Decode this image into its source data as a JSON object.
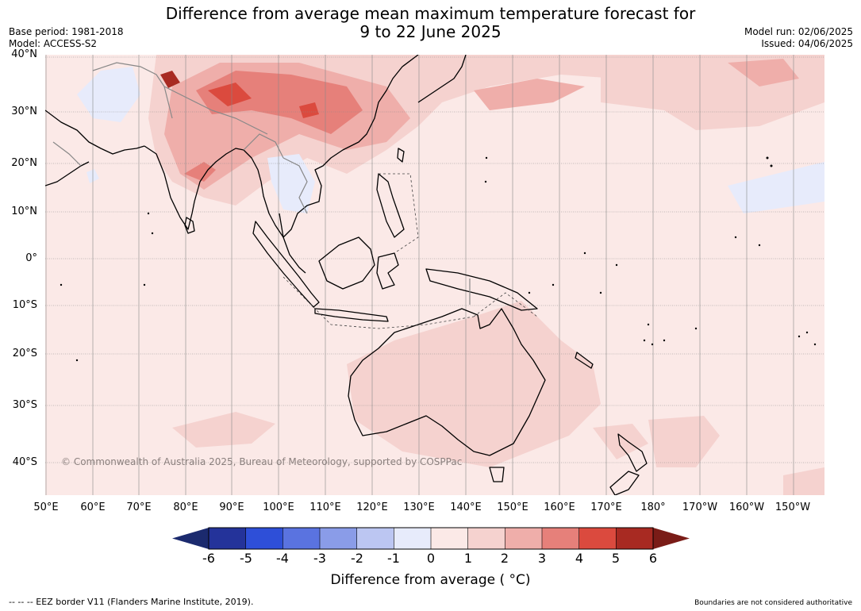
{
  "header": {
    "title_line1": "Difference from average mean maximum temperature forecast for",
    "title_line2": "9 to 22 June 2025",
    "base_period": "Base period: 1981-2018",
    "model": "Model: ACCESS-S2",
    "model_run": "Model run: 02/06/2025",
    "issued": "Issued: 04/06/2025"
  },
  "map": {
    "copyright": "© Commonwealth of Australia 2025, Bureau of Meteorology, supported by COSPPac",
    "lat_labels": [
      "40°N",
      "30°N",
      "20°N",
      "10°N",
      "0°",
      "10°S",
      "20°S",
      "30°S",
      "40°S"
    ],
    "lon_labels": [
      "50°E",
      "60°E",
      "70°E",
      "80°E",
      "90°E",
      "100°E",
      "110°E",
      "120°E",
      "130°E",
      "140°E",
      "150°E",
      "160°E",
      "170°E",
      "180°",
      "170°W",
      "160°W",
      "150°W"
    ],
    "background_color": "#fbe9e7"
  },
  "colorbar": {
    "title": "Difference from average ( °C)",
    "labels": [
      "-6",
      "-5",
      "-4",
      "-3",
      "-2",
      "-1",
      "0",
      "1",
      "2",
      "3",
      "4",
      "5",
      "6"
    ],
    "colors": [
      "#24339a",
      "#2e4fd8",
      "#5a73e0",
      "#8a9ce8",
      "#bcc6f2",
      "#e7ebfb",
      "#fbe9e7",
      "#f5d2cf",
      "#efaeaa",
      "#e6807a",
      "#db4a3e",
      "#a82a22"
    ],
    "under_color": "#1b2a6e",
    "over_color": "#7a1c17"
  },
  "footer": {
    "eez_note": "-- -- -- EEZ border V11 (Flanders Marine Institute, 2019).",
    "boundary_note": "Boundaries are not considered authoritative"
  }
}
